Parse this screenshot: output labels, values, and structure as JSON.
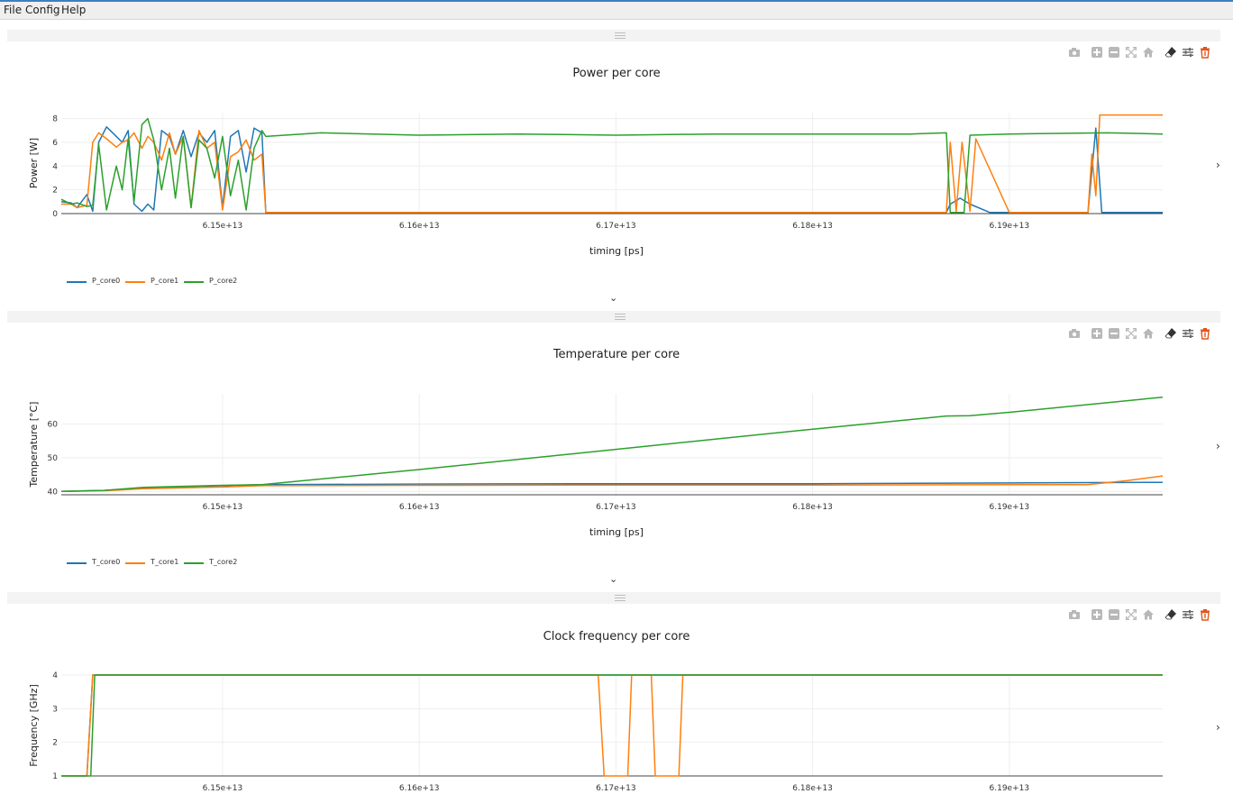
{
  "menu": {
    "file": "File",
    "config": "Config",
    "help": "Help"
  },
  "colors": {
    "core0": "#1f77b4",
    "core1": "#ff7f0e",
    "core2": "#2ca02c",
    "grid": "#eeeeee",
    "delete": "#e0561c",
    "icon": "#b8b8b8"
  },
  "toolbar_icons": [
    "camera-icon",
    "zoom-in-icon",
    "zoom-out-icon",
    "autoscale-icon",
    "home-icon",
    "eraser-icon",
    "settings-icon",
    "trash-icon"
  ],
  "collapse_glyph": "⌄",
  "expand_glyph": "›",
  "plots": [
    {
      "title": "Power per core",
      "chart_data": {
        "type": "line",
        "xlabel": "timing [ps]",
        "ylabel": "Power [W]",
        "xlim": [
          61418000000000.0,
          61978000000000.0
        ],
        "ylim": [
          0,
          8.5
        ],
        "xticks": [
          "6.15e+13",
          "6.16e+13",
          "6.17e+13",
          "6.18e+13",
          "6.19e+13"
        ],
        "xtick_values": [
          61500000000000.0,
          61600000000000.0,
          61700000000000.0,
          61800000000000.0,
          61900000000000.0
        ],
        "yticks": [
          "0",
          "2",
          "4",
          "6",
          "8"
        ],
        "ytick_values": [
          0,
          2,
          4,
          6,
          8
        ],
        "legend_placement": "bottom-left",
        "series": [
          {
            "name": "P_core0",
            "x": [
              61418000000000.0,
              61423000000000.0,
              61426000000000.0,
              61431000000000.0,
              61434000000000.0,
              61437000000000.0,
              61441000000000.0,
              61446000000000.0,
              61449000000000.0,
              61452000000000.0,
              61455000000000.0,
              61459000000000.0,
              61462000000000.0,
              61465000000000.0,
              61469000000000.0,
              61473000000000.0,
              61476000000000.0,
              61480000000000.0,
              61484000000000.0,
              61488000000000.0,
              61492000000000.0,
              61496000000000.0,
              61500000000000.0,
              61504000000000.0,
              61508000000000.0,
              61512000000000.0,
              61516000000000.0,
              61520000000000.0,
              61522000000000.0,
              61560000000000.0,
              61600000000000.0,
              61650000000000.0,
              61700000000000.0,
              61750000000000.0,
              61800000000000.0,
              61850000000000.0,
              61868000000000.0,
              61870000000000.0,
              61875000000000.0,
              61880000000000.0,
              61890000000000.0,
              61940000000000.0,
              61944000000000.0,
              61947000000000.0,
              61950000000000.0,
              61960000000000.0,
              61978000000000.0
            ],
            "y": [
              1.0,
              0.9,
              0.5,
              1.6,
              0.2,
              6.0,
              7.3,
              6.5,
              6.0,
              7.0,
              0.8,
              0.2,
              0.8,
              0.3,
              7.0,
              6.5,
              5.0,
              7.0,
              4.8,
              6.8,
              6.0,
              7.0,
              0.5,
              6.5,
              7.0,
              3.5,
              7.2,
              6.8,
              0.1,
              0.1,
              0.1,
              0.1,
              0.1,
              0.1,
              0.1,
              0.1,
              0.1,
              0.8,
              1.3,
              0.8,
              0.1,
              0.1,
              7.2,
              0.1,
              0.1,
              0.1,
              0.1
            ]
          },
          {
            "name": "P_core1",
            "x": [
              61418000000000.0,
              61423000000000.0,
              61426000000000.0,
              61431000000000.0,
              61434000000000.0,
              61437000000000.0,
              61441000000000.0,
              61446000000000.0,
              61449000000000.0,
              61452000000000.0,
              61455000000000.0,
              61459000000000.0,
              61462000000000.0,
              61465000000000.0,
              61469000000000.0,
              61473000000000.0,
              61476000000000.0,
              61480000000000.0,
              61484000000000.0,
              61488000000000.0,
              61492000000000.0,
              61496000000000.0,
              61500000000000.0,
              61504000000000.0,
              61508000000000.0,
              61512000000000.0,
              61516000000000.0,
              61520000000000.0,
              61522000000000.0,
              61560000000000.0,
              61600000000000.0,
              61650000000000.0,
              61700000000000.0,
              61750000000000.0,
              61800000000000.0,
              61850000000000.0,
              61868000000000.0,
              61870000000000.0,
              61873000000000.0,
              61876000000000.0,
              61880000000000.0,
              61883000000000.0,
              61900000000000.0,
              61940000000000.0,
              61942000000000.0,
              61944000000000.0,
              61946000000000.0,
              61978000000000.0
            ],
            "y": [
              0.8,
              0.8,
              0.5,
              0.7,
              6.0,
              6.8,
              6.3,
              5.6,
              6.0,
              6.2,
              6.8,
              5.5,
              6.5,
              6.0,
              4.5,
              6.8,
              5.0,
              6.5,
              0.5,
              7.0,
              5.5,
              6.0,
              0.3,
              4.8,
              5.2,
              6.2,
              4.5,
              5.0,
              0.1,
              0.1,
              0.1,
              0.1,
              0.1,
              0.1,
              0.1,
              0.1,
              0.1,
              6.0,
              0.2,
              6.0,
              0.2,
              6.3,
              0.1,
              0.1,
              5.0,
              1.5,
              8.3,
              8.3
            ]
          },
          {
            "name": "P_core2",
            "x": [
              61418000000000.0,
              61423000000000.0,
              61426000000000.0,
              61431000000000.0,
              61434000000000.0,
              61437000000000.0,
              61441000000000.0,
              61446000000000.0,
              61449000000000.0,
              61452000000000.0,
              61455000000000.0,
              61459000000000.0,
              61462000000000.0,
              61465000000000.0,
              61469000000000.0,
              61473000000000.0,
              61476000000000.0,
              61480000000000.0,
              61484000000000.0,
              61488000000000.0,
              61492000000000.0,
              61496000000000.0,
              61500000000000.0,
              61504000000000.0,
              61508000000000.0,
              61512000000000.0,
              61516000000000.0,
              61520000000000.0,
              61522000000000.0,
              61550000000000.0,
              61600000000000.0,
              61650000000000.0,
              61700000000000.0,
              61750000000000.0,
              61800000000000.0,
              61850000000000.0,
              61868000000000.0,
              61870000000000.0,
              61877000000000.0,
              61880000000000.0,
              61900000000000.0,
              61950000000000.0,
              61978000000000.0
            ],
            "y": [
              1.2,
              0.8,
              0.9,
              0.6,
              0.7,
              5.8,
              0.3,
              4.0,
              2.0,
              6.3,
              1.0,
              7.5,
              8.0,
              6.2,
              2.0,
              5.5,
              1.3,
              6.5,
              0.5,
              6.2,
              5.5,
              3.0,
              6.5,
              1.5,
              4.5,
              0.3,
              5.5,
              7.0,
              6.5,
              6.8,
              6.6,
              6.7,
              6.6,
              6.7,
              6.7,
              6.7,
              6.8,
              0.1,
              0.1,
              6.6,
              6.7,
              6.8,
              6.7
            ]
          }
        ]
      },
      "legend": [
        "P_core0",
        "P_core1",
        "P_core2"
      ]
    },
    {
      "title": "Temperature per core",
      "chart_data": {
        "type": "line",
        "xlabel": "timing [ps]",
        "ylabel": "Temperature [°C]",
        "xlim": [
          61418000000000.0,
          61978000000000.0
        ],
        "ylim": [
          39,
          69
        ],
        "xticks": [
          "6.15e+13",
          "6.16e+13",
          "6.17e+13",
          "6.18e+13",
          "6.19e+13"
        ],
        "xtick_values": [
          61500000000000.0,
          61600000000000.0,
          61700000000000.0,
          61800000000000.0,
          61900000000000.0
        ],
        "yticks": [
          "40",
          "50",
          "60"
        ],
        "ytick_values": [
          40,
          50,
          60
        ],
        "legend_placement": "bottom-left",
        "series": [
          {
            "name": "T_core0",
            "x": [
              61418000000000.0,
              61440000000000.0,
              61460000000000.0,
              61500000000000.0,
              61520000000000.0,
              61600000000000.0,
              61700000000000.0,
              61800000000000.0,
              61900000000000.0,
              61978000000000.0
            ],
            "y": [
              40,
              40.3,
              41.0,
              41.7,
              42.0,
              42.2,
              42.3,
              42.3,
              42.5,
              42.7
            ]
          },
          {
            "name": "T_core1",
            "x": [
              61418000000000.0,
              61440000000000.0,
              61460000000000.0,
              61500000000000.0,
              61520000000000.0,
              61600000000000.0,
              61700000000000.0,
              61800000000000.0,
              61900000000000.0,
              61940000000000.0,
              61960000000000.0,
              61978000000000.0
            ],
            "y": [
              40,
              40.2,
              40.8,
              41.3,
              41.7,
              41.8,
              41.9,
              41.9,
              42.0,
              42.0,
              43.2,
              44.6
            ]
          },
          {
            "name": "T_core2",
            "x": [
              61418000000000.0,
              61440000000000.0,
              61460000000000.0,
              61500000000000.0,
              61520000000000.0,
              61600000000000.0,
              61700000000000.0,
              61800000000000.0,
              61868000000000.0,
              61880000000000.0,
              61900000000000.0,
              61978000000000.0
            ],
            "y": [
              40,
              40.3,
              41.2,
              41.8,
              42.0,
              46.5,
              52.5,
              58.5,
              62.4,
              62.5,
              63.5,
              68.0
            ]
          }
        ]
      },
      "legend": [
        "T_core0",
        "T_core1",
        "T_core2"
      ]
    },
    {
      "title": "Clock frequency per core",
      "chart_data": {
        "type": "line",
        "xlabel": "",
        "ylabel": "Frequency [GHz]",
        "xlim": [
          61418000000000.0,
          61978000000000.0
        ],
        "ylim": [
          1,
          4
        ],
        "xticks": [
          "6.15e+13",
          "6.16e+13",
          "6.17e+13",
          "6.18e+13",
          "6.19e+13"
        ],
        "xtick_values": [
          61500000000000.0,
          61600000000000.0,
          61700000000000.0,
          61800000000000.0,
          61900000000000.0
        ],
        "yticks": [
          "1",
          "2",
          "3",
          "4"
        ],
        "ytick_values": [
          1,
          2,
          3,
          4
        ],
        "series": [
          {
            "name": "",
            "color": "#1f77b4",
            "x": [
              61418000000000.0,
              61431000000000.0,
              61434000000000.0,
              61978000000000.0
            ],
            "y": [
              1,
              1,
              4,
              4
            ]
          },
          {
            "name": "",
            "color": "#ff7f0e",
            "x": [
              61418000000000.0,
              61431000000000.0,
              61434000000000.0,
              61691000000000.0,
              61694000000000.0,
              61706000000000.0,
              61708000000000.0,
              61718000000000.0,
              61720000000000.0,
              61732000000000.0,
              61734000000000.0,
              61978000000000.0
            ],
            "y": [
              1,
              1,
              4,
              4,
              1,
              1,
              4,
              4,
              1,
              1,
              4,
              4
            ]
          },
          {
            "name": "",
            "color": "#2ca02c",
            "x": [
              61418000000000.0,
              61433000000000.0,
              61435000000000.0,
              61978000000000.0
            ],
            "y": [
              1,
              1,
              4,
              4
            ]
          }
        ]
      },
      "legend": []
    }
  ]
}
